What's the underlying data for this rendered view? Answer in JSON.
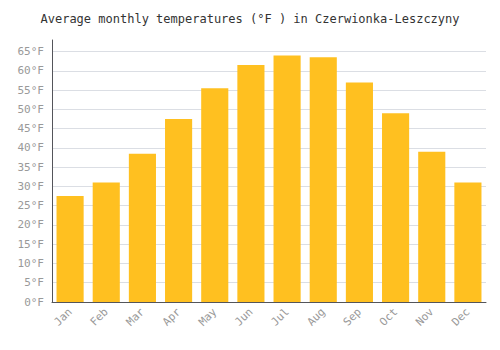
{
  "chart_data": {
    "type": "bar",
    "title": "Average monthly temperatures (°F ) in Czerwionka-Leszczyny",
    "categories": [
      "Jan",
      "Feb",
      "Mar",
      "Apr",
      "May",
      "Jun",
      "Jul",
      "Aug",
      "Sep",
      "Oct",
      "Nov",
      "Dec"
    ],
    "values": [
      27.5,
      31.0,
      38.5,
      47.5,
      55.5,
      61.5,
      64.0,
      63.5,
      57.0,
      49.0,
      39.0,
      31.0
    ],
    "color": "#FFC020",
    "ylim": [
      0,
      68
    ],
    "yticks": [
      {
        "value": 0,
        "label": "0°F"
      },
      {
        "value": 5,
        "label": "5°F"
      },
      {
        "value": 10,
        "label": "10°F"
      },
      {
        "value": 15,
        "label": "15°F"
      },
      {
        "value": 20,
        "label": "20°F"
      },
      {
        "value": 25,
        "label": "25°F"
      },
      {
        "value": 30,
        "label": "30°F"
      },
      {
        "value": 35,
        "label": "35°F"
      },
      {
        "value": 40,
        "label": "40°F"
      },
      {
        "value": 45,
        "label": "45°F"
      },
      {
        "value": 50,
        "label": "50°F"
      },
      {
        "value": 55,
        "label": "55°F"
      },
      {
        "value": 60,
        "label": "60°F"
      },
      {
        "value": 65,
        "label": "65°F"
      }
    ],
    "grid": true
  }
}
